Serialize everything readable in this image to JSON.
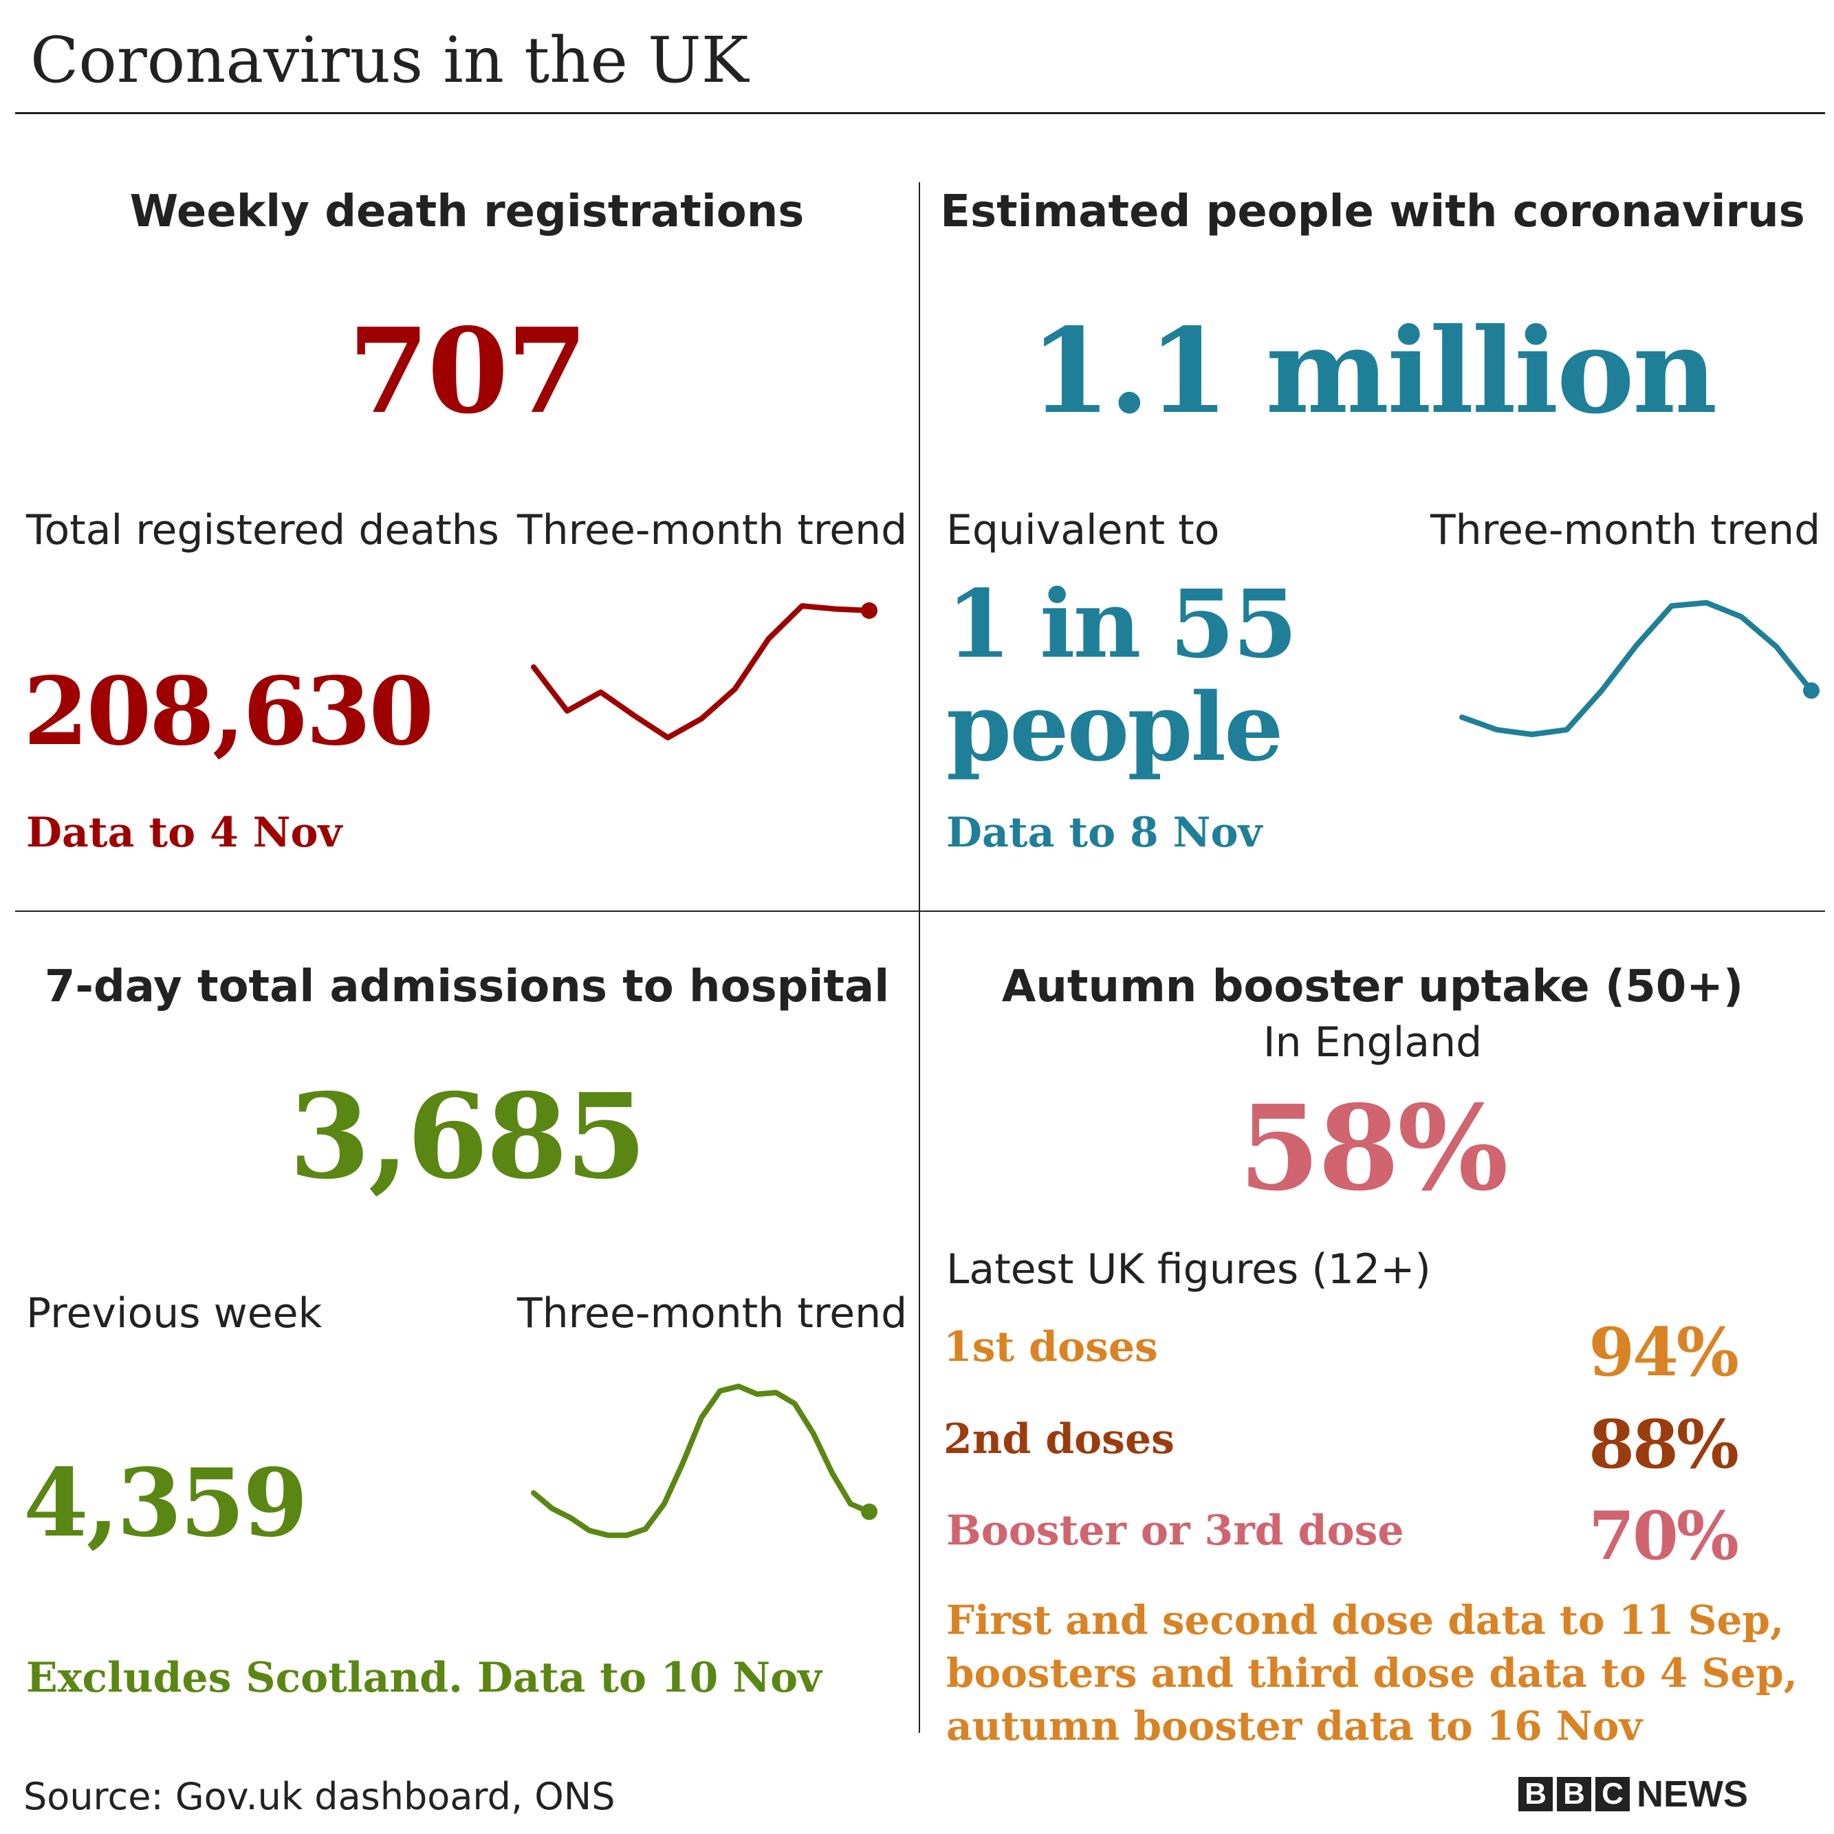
{
  "title": "Coronavirus in the UK",
  "source": "Source: Gov.uk dashboard, ONS",
  "logo": {
    "bbc_letters": [
      "B",
      "B",
      "C"
    ],
    "news_label": "NEWS"
  },
  "colors": {
    "deaths": "#9e0000",
    "infections": "#1f7f99",
    "hospital": "#5a8713",
    "booster": "#d0646f",
    "first_dose": "#d98324",
    "second_dose": "#9a3c0e",
    "third_dose": "#d0646f",
    "dose_footnote": "#d98324"
  },
  "deaths": {
    "heading": "Weekly death registrations",
    "value": "707",
    "sub_label": "Total registered deaths",
    "trend_label": "Three-month trend",
    "total": "208,630",
    "note": "Data to 4 Nov"
  },
  "infections": {
    "heading": "Estimated people with coronavirus",
    "value": "1.1 million",
    "sub_label": "Equivalent to",
    "trend_label": "Three-month trend",
    "ratio_line1": "1 in 55",
    "ratio_line2": "people",
    "note": "Data to 8 Nov"
  },
  "hospital": {
    "heading": "7-day total admissions to hospital",
    "value": "3,685",
    "sub_label": "Previous week",
    "trend_label": "Three-month trend",
    "previous": "4,359",
    "note": "Excludes Scotland. Data to 10 Nov"
  },
  "booster": {
    "heading": "Autumn booster uptake (50+)",
    "subheading": "In England",
    "value": "58%",
    "uk_label": "Latest UK figures (12+)",
    "doses": [
      {
        "label": "1st doses",
        "value": "94%"
      },
      {
        "label": "2nd doses",
        "value": "88%"
      },
      {
        "label": "Booster or 3rd dose",
        "value": "70%"
      }
    ],
    "footnote": [
      "First and second dose data to 11 Sep,",
      "boosters and third dose data to 4 Sep,",
      "autumn booster data to 16 Nov"
    ]
  },
  "chart_data": [
    {
      "type": "line",
      "title": "Three-month trend",
      "series": [
        {
          "values": [
            50,
            22,
            34,
            19,
            5,
            17,
            36,
            68,
            89,
            87,
            86
          ]
        }
      ],
      "ylim": [
        0,
        100
      ],
      "grid": false
    },
    {
      "type": "line",
      "title": "Three-month trend",
      "series": [
        {
          "values": [
            18,
            10,
            7,
            10,
            35,
            64,
            89,
            91,
            82,
            63,
            35
          ]
        }
      ],
      "ylim": [
        0,
        100
      ],
      "grid": false
    },
    {
      "type": "line",
      "title": "Three-month trend",
      "series": [
        {
          "values": [
            32,
            22,
            16,
            8,
            5,
            5,
            9,
            25,
            51,
            80,
            97,
            100,
            95,
            96,
            89,
            70,
            45,
            25,
            20
          ]
        }
      ],
      "ylim": [
        0,
        100
      ],
      "grid": false
    }
  ]
}
